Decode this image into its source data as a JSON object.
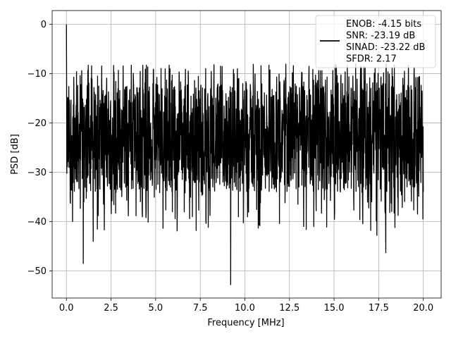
{
  "chart_data": {
    "type": "line",
    "title": "",
    "xlabel": "Frequency [MHz]",
    "ylabel": "PSD [dB]",
    "xlim": [
      -0.8,
      21.0
    ],
    "ylim": [
      -55.5,
      2.8
    ],
    "x_ticks": [
      0.0,
      2.5,
      5.0,
      7.5,
      10.0,
      12.5,
      15.0,
      17.5,
      20.0
    ],
    "x_tick_labels": [
      "0.0",
      "2.5",
      "5.0",
      "7.5",
      "10.0",
      "12.5",
      "15.0",
      "17.5",
      "20.0"
    ],
    "y_ticks": [
      0,
      -10,
      -20,
      -30,
      -40,
      -50
    ],
    "y_tick_labels": [
      "0",
      "−10",
      "−20",
      "−30",
      "−40",
      "−50"
    ],
    "grid": true,
    "legend_position": "top-right",
    "series": [
      {
        "name": "ENOB: -4.15 bits\nSNR: -23.19 dB\nSINAD: -23.22 dB\nSFDR: 2.17",
        "color": "#000000",
        "noise_floor_db": [
          -12,
          -34
        ],
        "x_range": [
          0.0,
          20.0
        ],
        "peaks": [
          {
            "x": 0.0,
            "y": 0.0
          },
          {
            "x": 0.35,
            "y": -40.0
          },
          {
            "x": 0.95,
            "y": -48.5
          },
          {
            "x": 1.5,
            "y": -44.0
          },
          {
            "x": 9.2,
            "y": -52.8
          },
          {
            "x": 13.3,
            "y": -41.0
          },
          {
            "x": 17.4,
            "y": -42.8
          },
          {
            "x": 17.9,
            "y": -46.3
          },
          {
            "x": 20.0,
            "y": -34.0
          }
        ]
      }
    ]
  }
}
